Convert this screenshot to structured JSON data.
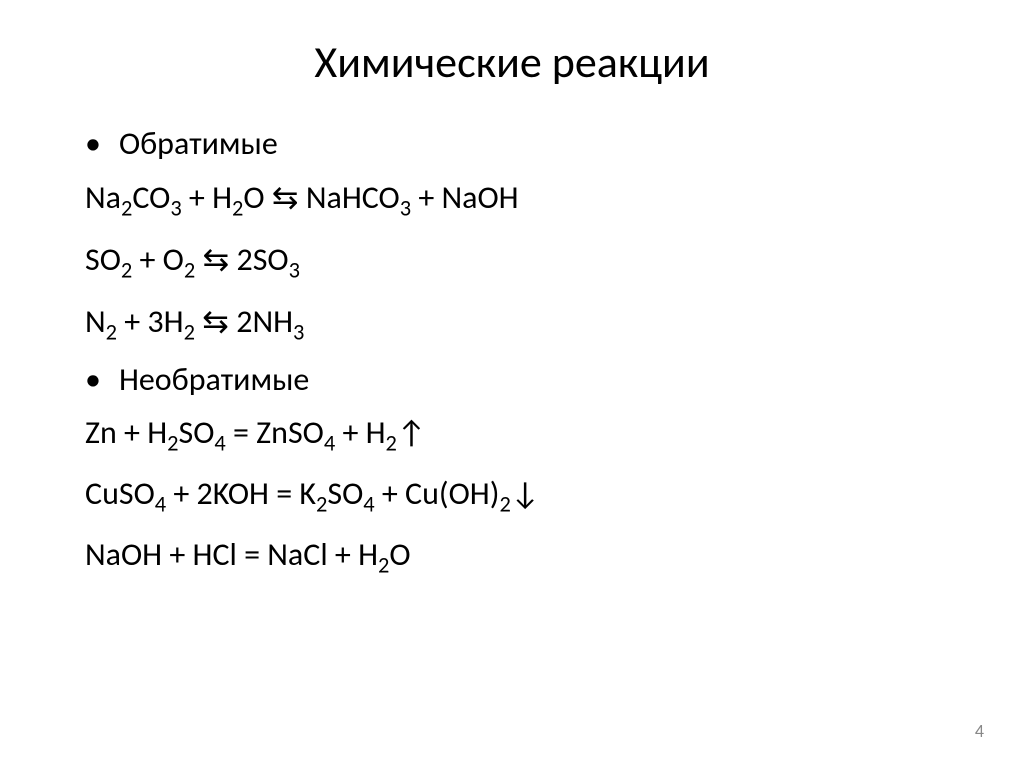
{
  "title": "Химические реакции",
  "section1_label": "Обратимые",
  "section2_label": "Необратимые",
  "eq1_parts": {
    "p1": "Na",
    "s1": "2",
    "p2": "CO",
    "s2": "3",
    "p3": " + H",
    "s3": "2",
    "p4": "O ",
    "arrow": "⇆",
    "p5": " NaHCO",
    "s5": "3",
    "p6": " + NaOH"
  },
  "eq2_parts": {
    "p1": "SO",
    "s1": "2",
    "p2": " + O",
    "s2": "2",
    "p3": " ",
    "arrow": "⇆",
    "p4": " 2SO",
    "s4": "3"
  },
  "eq3_parts": {
    "p1": "N",
    "s1": "2",
    "p2": " + 3H",
    "s2": "2",
    "p3": " ",
    "arrow": "⇆",
    "p4": " 2NH",
    "s4": "3"
  },
  "eq4_parts": {
    "p1": "Zn + H",
    "s1": "2",
    "p2": "SO",
    "s2": "4",
    "p3": " = ZnSO",
    "s3": "4",
    "p4": " + H",
    "s4": "2",
    "up": "↑"
  },
  "eq5_parts": {
    "p1": "CuSO",
    "s1": "4",
    "p2": " + 2KOH = K",
    "s2": "2",
    "p3": "SO",
    "s3": "4",
    "p4": " + Cu(OH)",
    "s4": "2",
    "down": "↓"
  },
  "eq6_parts": {
    "p1": "NaOH + HCl = NaCl + H",
    "s1": "2",
    "p2": "O"
  },
  "page_number": "4",
  "colors": {
    "background": "#ffffff",
    "text": "#000000",
    "page_num": "#888888"
  },
  "typography": {
    "title_fontsize": 44,
    "body_fontsize": 32,
    "pagenum_fontsize": 18,
    "font_family": "Calibri"
  }
}
